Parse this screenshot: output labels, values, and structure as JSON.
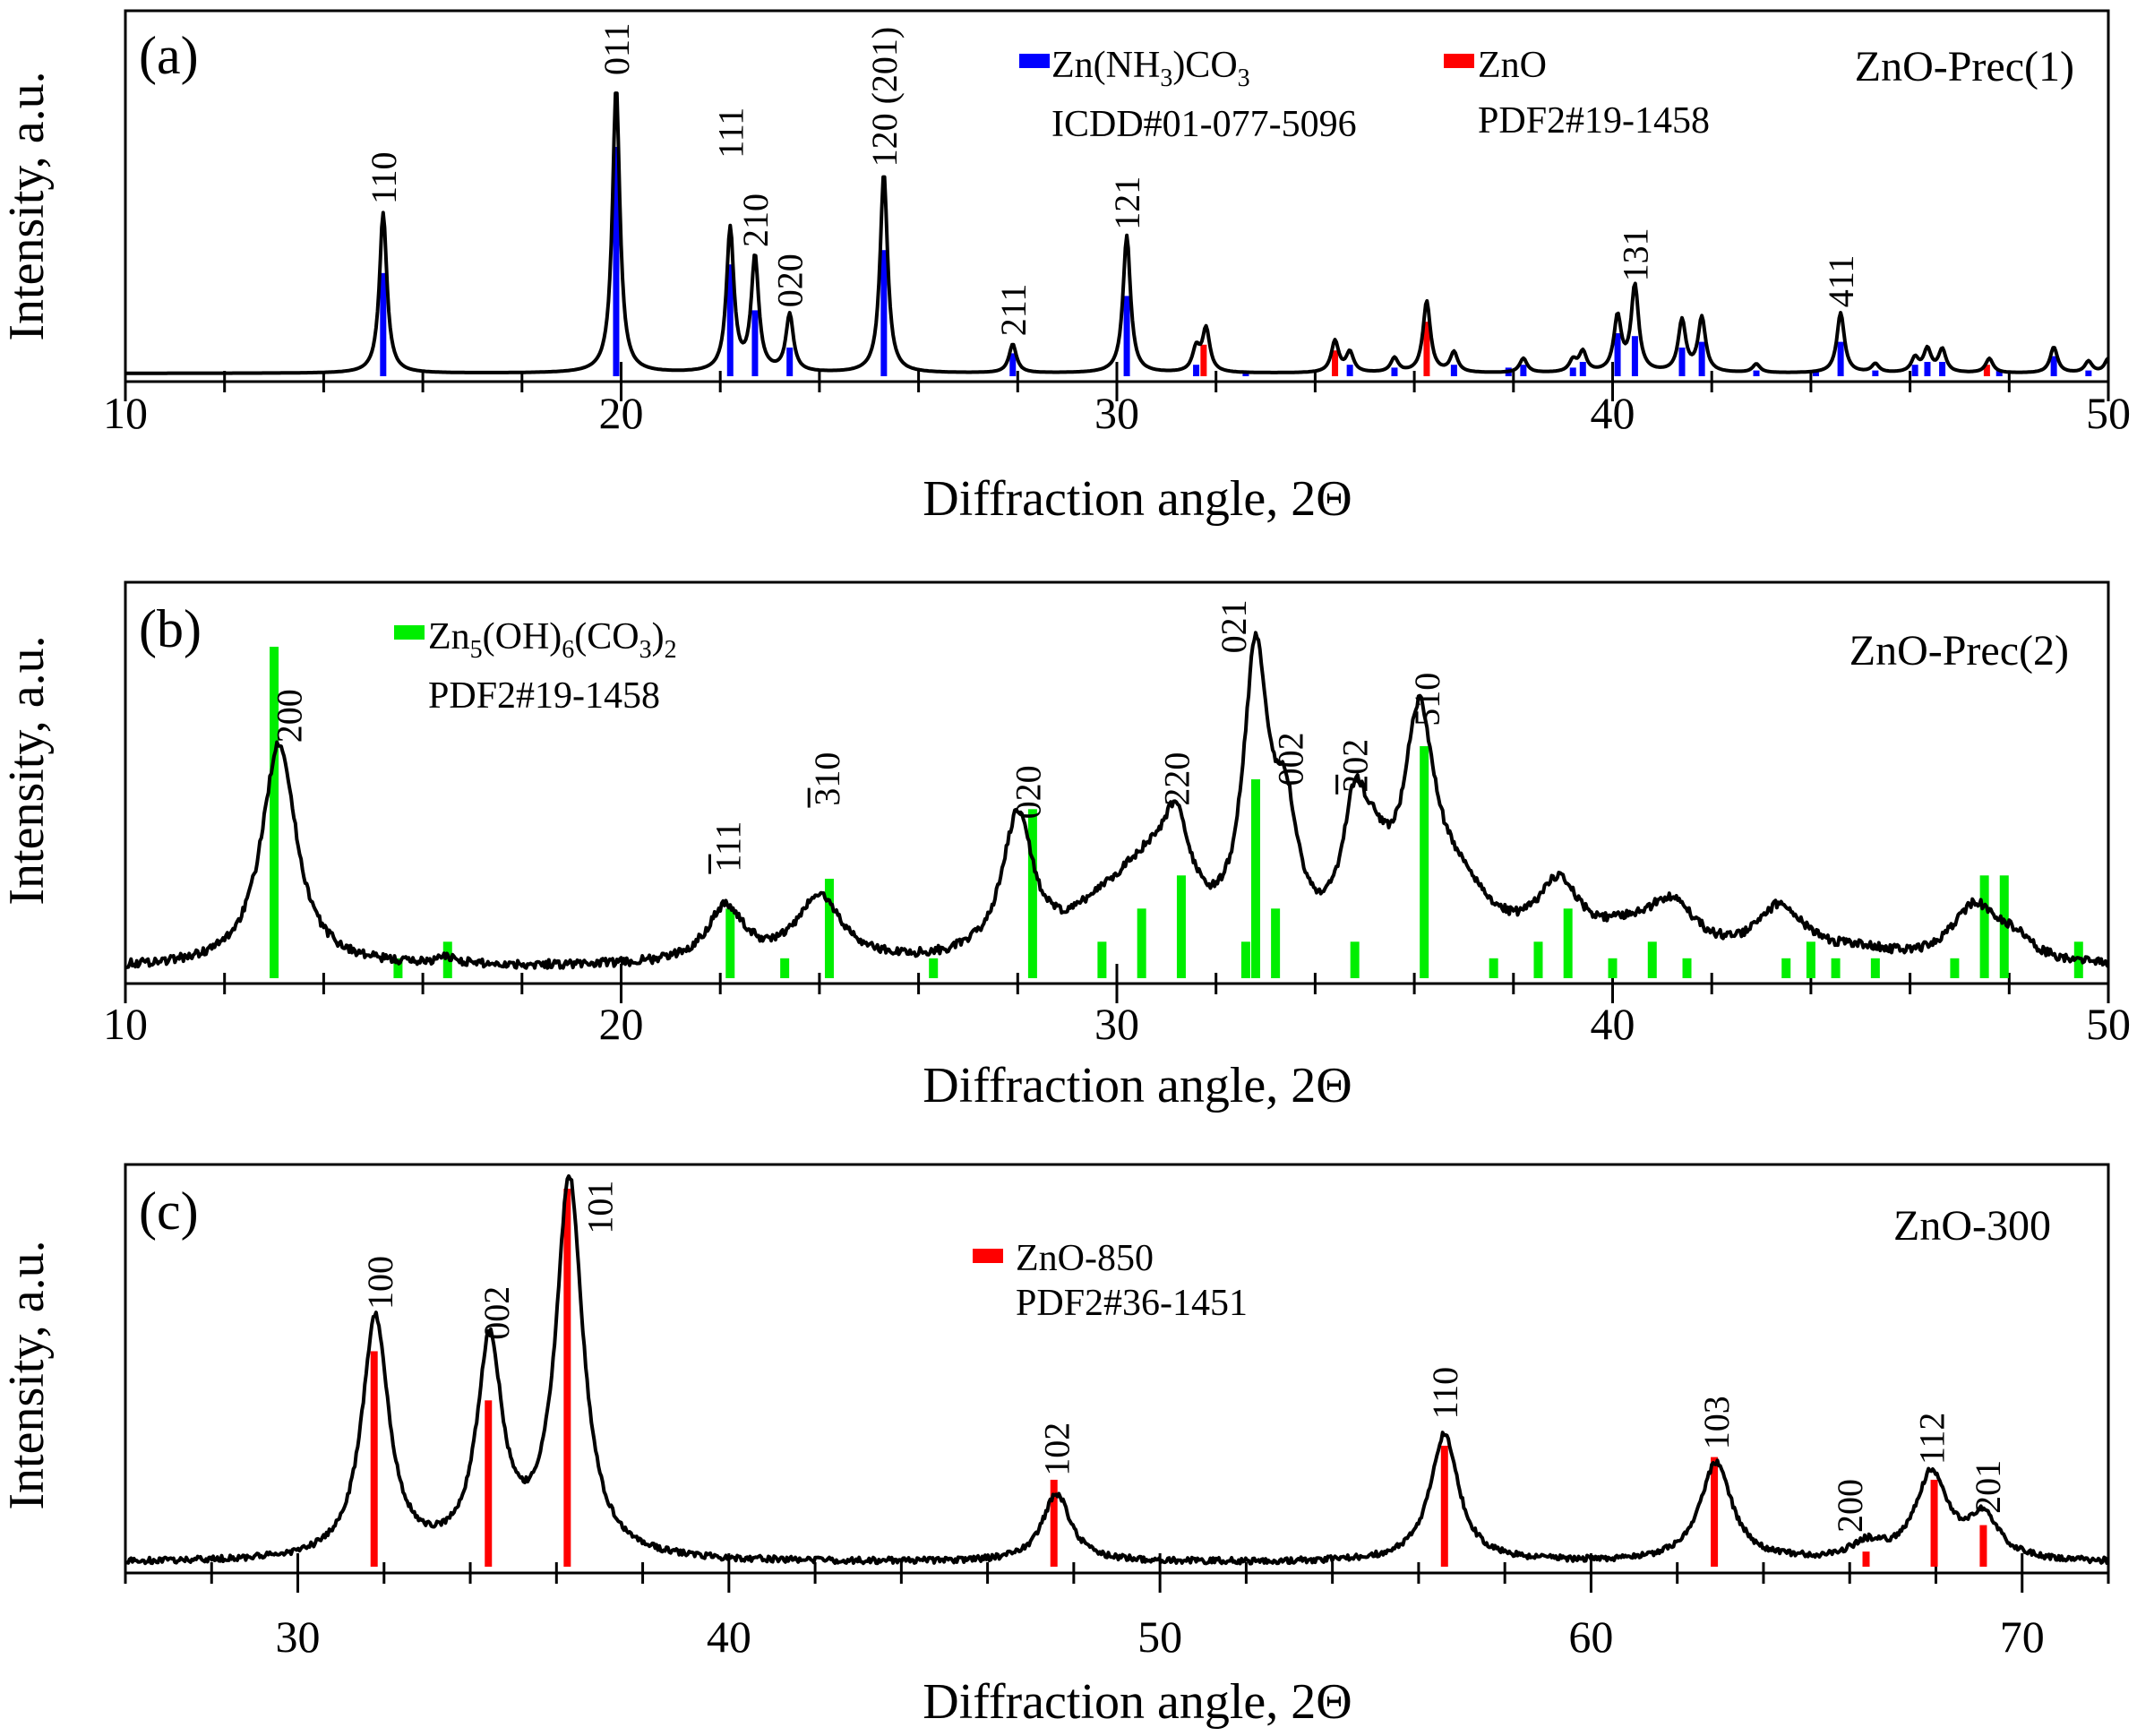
{
  "chart_data": [
    {
      "id": "a",
      "type": "line",
      "panel_label": "(a)",
      "sample_label": "ZnO-Prec(1)",
      "xlabel": "Diffraction angle, 2Θ",
      "ylabel": "Intensity, a.u.",
      "xlim": [
        10,
        50
      ],
      "ylim": [
        0,
        100
      ],
      "x_major_ticks": [
        10,
        20,
        30,
        40,
        50
      ],
      "x_minor_step": 2,
      "baseline": 1,
      "noise": 0,
      "pattern_peaks": [
        {
          "x": 15.2,
          "h": 56,
          "w": 0.09
        },
        {
          "x": 19.9,
          "h": 100,
          "w": 0.09
        },
        {
          "x": 22.2,
          "h": 50,
          "w": 0.09
        },
        {
          "x": 22.7,
          "h": 40,
          "w": 0.09
        },
        {
          "x": 23.4,
          "h": 20,
          "w": 0.09
        },
        {
          "x": 25.3,
          "h": 70,
          "w": 0.09
        },
        {
          "x": 27.9,
          "h": 10,
          "w": 0.09
        },
        {
          "x": 30.2,
          "h": 48,
          "w": 0.09
        },
        {
          "x": 31.6,
          "h": 8,
          "w": 0.09
        },
        {
          "x": 31.8,
          "h": 15,
          "w": 0.09
        },
        {
          "x": 34.4,
          "h": 11,
          "w": 0.09
        },
        {
          "x": 34.7,
          "h": 7,
          "w": 0.09
        },
        {
          "x": 35.6,
          "h": 5,
          "w": 0.09
        },
        {
          "x": 36.25,
          "h": 25,
          "w": 0.09
        },
        {
          "x": 36.8,
          "h": 7,
          "w": 0.09
        },
        {
          "x": 38.2,
          "h": 5,
          "w": 0.09
        },
        {
          "x": 39.2,
          "h": 4,
          "w": 0.09
        },
        {
          "x": 39.4,
          "h": 7,
          "w": 0.09
        },
        {
          "x": 40.1,
          "h": 19,
          "w": 0.09
        },
        {
          "x": 40.45,
          "h": 30,
          "w": 0.09
        },
        {
          "x": 41.4,
          "h": 18,
          "w": 0.09
        },
        {
          "x": 41.8,
          "h": 19,
          "w": 0.09
        },
        {
          "x": 42.9,
          "h": 3,
          "w": 0.09
        },
        {
          "x": 44.6,
          "h": 21,
          "w": 0.09
        },
        {
          "x": 45.3,
          "h": 3,
          "w": 0.09
        },
        {
          "x": 46.1,
          "h": 5,
          "w": 0.09
        },
        {
          "x": 46.35,
          "h": 8,
          "w": 0.09
        },
        {
          "x": 46.65,
          "h": 8,
          "w": 0.09
        },
        {
          "x": 47.6,
          "h": 5,
          "w": 0.09
        },
        {
          "x": 48.9,
          "h": 9,
          "w": 0.09
        },
        {
          "x": 49.6,
          "h": 4,
          "w": 0.09
        },
        {
          "x": 50.0,
          "h": 5,
          "w": 0.09
        }
      ],
      "reference_series": [
        {
          "name": "Zn(NH3)CO3",
          "color": "#0000ff",
          "positions": [
            15.2,
            19.9,
            22.2,
            22.7,
            23.4,
            25.3,
            27.9,
            30.2,
            31.6,
            32.6,
            34.7,
            35.6,
            36.8,
            37.9,
            38.2,
            39.2,
            39.4,
            40.1,
            40.45,
            41.4,
            41.8,
            42.9,
            44.1,
            44.6,
            45.3,
            46.1,
            46.35,
            46.65,
            47.8,
            48.9,
            49.6
          ],
          "intensities": [
            36,
            80,
            39,
            23,
            10,
            44,
            8,
            28,
            4,
            2,
            4,
            3,
            4,
            3,
            4,
            3,
            5,
            15,
            14,
            10,
            12,
            2,
            2,
            12,
            2,
            4,
            5,
            5,
            2,
            7,
            2
          ]
        },
        {
          "name": "ZnO",
          "color": "#ff0000",
          "positions": [
            31.75,
            34.4,
            36.25,
            47.55
          ],
          "intensities": [
            11,
            9,
            19,
            4
          ]
        }
      ],
      "legend": [
        {
          "name": "Zn(NH3)CO3",
          "color": "#0000ff",
          "subtitle": "ICDD#01-077-5096"
        },
        {
          "name": "ZnO",
          "color": "#ff0000",
          "subtitle": "PDF2#19-1458"
        }
      ],
      "peak_labels": [
        {
          "text": "110",
          "x": 15.2,
          "y": 60
        },
        {
          "text": "011",
          "x": 19.9,
          "y": 105
        },
        {
          "text": "111",
          "x": 22.2,
          "y": 76
        },
        {
          "text": "210",
          "x": 22.7,
          "y": 45
        },
        {
          "text": "020",
          "x": 23.4,
          "y": 24
        },
        {
          "text": "120 (201)",
          "x": 25.3,
          "y": 73
        },
        {
          "text": "211",
          "x": 27.9,
          "y": 14
        },
        {
          "text": "121",
          "x": 30.2,
          "y": 51
        },
        {
          "text": "131",
          "x": 40.45,
          "y": 33
        },
        {
          "text": "411",
          "x": 44.6,
          "y": 24
        }
      ]
    },
    {
      "id": "b",
      "type": "line",
      "panel_label": "(b)",
      "sample_label": "ZnO-Prec(2)",
      "xlabel": "Diffraction angle, 2Θ",
      "ylabel": "Intensity, a.u.",
      "xlim": [
        10,
        50
      ],
      "ylim": [
        0,
        100
      ],
      "x_major_ticks": [
        10,
        20,
        30,
        40,
        50
      ],
      "x_minor_step": 2,
      "baseline": 3,
      "noise": 1.3,
      "pattern_peaks": [
        {
          "x": 13.1,
          "h": 68,
          "w": 0.42
        },
        {
          "x": 16.5,
          "h": 2,
          "w": 0.25
        },
        {
          "x": 22.1,
          "h": 17,
          "w": 0.45
        },
        {
          "x": 24.0,
          "h": 20,
          "w": 0.55
        },
        {
          "x": 28.0,
          "h": 42,
          "w": 0.38
        },
        {
          "x": 29.7,
          "h": 10,
          "w": 0.8
        },
        {
          "x": 30.6,
          "h": 22,
          "w": 0.8
        },
        {
          "x": 31.2,
          "h": 28,
          "w": 0.35
        },
        {
          "x": 32.8,
          "h": 86,
          "w": 0.3
        },
        {
          "x": 33.4,
          "h": 35,
          "w": 0.3
        },
        {
          "x": 34.8,
          "h": 35,
          "w": 0.3
        },
        {
          "x": 35.2,
          "h": 18,
          "w": 0.4
        },
        {
          "x": 36.1,
          "h": 64,
          "w": 0.38
        },
        {
          "x": 36.9,
          "h": 18,
          "w": 0.8
        },
        {
          "x": 38.9,
          "h": 20,
          "w": 0.55
        },
        {
          "x": 40.3,
          "h": 6,
          "w": 0.8
        },
        {
          "x": 41.2,
          "h": 15,
          "w": 0.6
        },
        {
          "x": 43.4,
          "h": 16,
          "w": 0.6
        },
        {
          "x": 45.0,
          "h": 3,
          "w": 0.9
        },
        {
          "x": 47.3,
          "h": 17,
          "w": 0.55
        },
        {
          "x": 48.1,
          "h": 6,
          "w": 0.45
        }
      ],
      "reference_series": [
        {
          "name": "Zn5(OH)6(CO3)2",
          "color": "#00ee00",
          "positions": [
            13.0,
            15.5,
            16.5,
            22.2,
            23.3,
            24.2,
            26.3,
            28.3,
            29.7,
            30.5,
            31.3,
            32.6,
            32.8,
            33.2,
            34.8,
            36.2,
            37.6,
            38.5,
            39.1,
            40.0,
            40.8,
            41.5,
            43.5,
            44.0,
            44.5,
            45.3,
            46.9,
            47.5,
            47.9,
            49.4
          ],
          "intensities": [
            100,
            6,
            11,
            21,
            6,
            30,
            6,
            51,
            11,
            21,
            31,
            11,
            60,
            21,
            11,
            70,
            6,
            11,
            21,
            6,
            11,
            6,
            6,
            11,
            6,
            6,
            6,
            31,
            31,
            11
          ]
        }
      ],
      "legend": [
        {
          "name": "Zn5(OH)6(CO3)2",
          "color": "#00ee00",
          "subtitle": "PDF2#19-1458"
        }
      ],
      "peak_labels": [
        {
          "text": "200",
          "x": 13.3,
          "y": 71,
          "overbar_digits": 0
        },
        {
          "text": "111",
          "x": 22.15,
          "y": 32,
          "overbar_digits": 1
        },
        {
          "text": "310",
          "x": 24.15,
          "y": 52,
          "overbar_digits": 1
        },
        {
          "text": "020",
          "x": 28.2,
          "y": 48,
          "overbar_digits": 0
        },
        {
          "text": "220",
          "x": 31.2,
          "y": 52,
          "overbar_digits": 0
        },
        {
          "text": "021",
          "x": 32.35,
          "y": 98,
          "overbar_digits": 0
        },
        {
          "text": "002",
          "x": 33.5,
          "y": 58,
          "overbar_digits": 0
        },
        {
          "text": "202",
          "x": 34.8,
          "y": 56,
          "overbar_digits": 1
        },
        {
          "text": "510",
          "x": 36.25,
          "y": 76,
          "overbar_digits": 0
        }
      ]
    },
    {
      "id": "c",
      "type": "line",
      "panel_label": "(c)",
      "sample_label": "ZnO-300",
      "xlabel": "Diffraction angle, 2Θ",
      "ylabel": "Intensity, a.u.",
      "xlim": [
        26,
        72
      ],
      "ylim": [
        0,
        100
      ],
      "x_major_ticks": [
        30,
        40,
        50,
        60,
        70
      ],
      "x_minor_step": 2,
      "baseline": 1,
      "noise": 0.8,
      "pattern_peaks": [
        {
          "x": 31.8,
          "h": 64,
          "w": 0.38
        },
        {
          "x": 34.45,
          "h": 56,
          "w": 0.36
        },
        {
          "x": 36.3,
          "h": 100,
          "w": 0.38
        },
        {
          "x": 47.6,
          "h": 18,
          "w": 0.4
        },
        {
          "x": 56.6,
          "h": 34,
          "w": 0.4
        },
        {
          "x": 62.9,
          "h": 26,
          "w": 0.45
        },
        {
          "x": 66.4,
          "h": 4,
          "w": 0.45
        },
        {
          "x": 67.9,
          "h": 23,
          "w": 0.45
        },
        {
          "x": 69.1,
          "h": 11,
          "w": 0.45
        }
      ],
      "reference_series": [
        {
          "name": "ZnO-850",
          "color": "#ff0000",
          "positions": [
            31.77,
            34.42,
            36.25,
            47.54,
            56.6,
            62.86,
            66.38,
            67.96,
            69.1
          ],
          "intensities": [
            57,
            44,
            100,
            23,
            32,
            29,
            4,
            23,
            11
          ]
        }
      ],
      "legend": [
        {
          "name": "ZnO-850",
          "color": "#ff0000",
          "subtitle": "PDF2#36-1451"
        }
      ],
      "peak_labels": [
        {
          "text": "100",
          "x": 31.9,
          "y": 68
        },
        {
          "text": "002",
          "x": 34.6,
          "y": 60
        },
        {
          "text": "101",
          "x": 37.0,
          "y": 88
        },
        {
          "text": "102",
          "x": 47.6,
          "y": 24
        },
        {
          "text": "110",
          "x": 56.6,
          "y": 39
        },
        {
          "text": "103",
          "x": 62.9,
          "y": 31
        },
        {
          "text": "200",
          "x": 66.0,
          "y": 9
        },
        {
          "text": "112",
          "x": 67.9,
          "y": 27
        },
        {
          "text": "201",
          "x": 69.2,
          "y": 14
        }
      ]
    }
  ]
}
